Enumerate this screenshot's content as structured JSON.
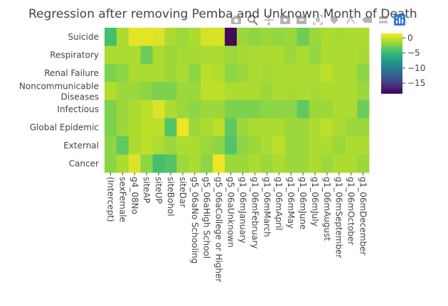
{
  "chart_data": {
    "type": "heatmap",
    "title": "Regression after removing Pemba and Unknown Month of Death",
    "x": [
      "(Intercept)",
      "sexFemale",
      "g4_08No",
      "siteAP",
      "siteUP",
      "siteBohol",
      "siteDar",
      "g5_06aNo Schooling",
      "g5_06aHigh School",
      "g5_06aCollege or Higher",
      "g5_06aUnknown",
      "g1_06mJanuary",
      "g1_06mFebruary",
      "g1_06mMarch",
      "g1_06mApril",
      "g1_06mMay",
      "g1_06mJune",
      "g1_06mJuly",
      "g1_06mAugust",
      "g1_06mSeptember",
      "g1_06mOctober",
      "g1_06mDecember"
    ],
    "y": [
      "Suicide",
      "Respiratory",
      "Renal Failure",
      "Noncommunicable Diseases",
      "Infectious",
      "Global Epidemic",
      "External",
      "Cancer"
    ],
    "y_tick_lines": [
      [
        "Suicide"
      ],
      [
        "Respiratory"
      ],
      [
        "Renal Failure"
      ],
      [
        "Noncommunicable",
        "Diseases"
      ],
      [
        "Infectious"
      ],
      [
        "Global Epidemic"
      ],
      [
        "External"
      ],
      [
        "Cancer"
      ]
    ],
    "z": [
      [
        -4.5,
        -1.0,
        0.7,
        0.8,
        0.5,
        -1.0,
        -1.5,
        -1.0,
        0.3,
        0.4,
        -18.0,
        -1.5,
        -2.0,
        -1.5,
        -1.8,
        -1.5,
        -3.0,
        -1.5,
        -1.0,
        -1.2,
        -1.0,
        -1.0
      ],
      [
        -1.0,
        -1.0,
        -1.0,
        -3.0,
        -1.0,
        -1.5,
        -1.2,
        -1.2,
        -1.0,
        -1.0,
        -1.5,
        -1.2,
        -1.0,
        -1.0,
        -1.0,
        -1.5,
        -1.0,
        -1.8,
        -1.0,
        -1.0,
        -1.0,
        -1.2
      ],
      [
        -2.5,
        -2.0,
        -1.0,
        -1.0,
        -1.0,
        -1.5,
        -1.0,
        -2.0,
        -0.5,
        -0.8,
        -2.0,
        -1.5,
        -1.0,
        -1.2,
        -1.0,
        -1.0,
        -1.0,
        -1.0,
        -0.5,
        -1.0,
        -1.0,
        -2.0
      ],
      [
        -0.8,
        -1.5,
        -1.5,
        -2.0,
        -2.5,
        -2.5,
        -1.5,
        -1.5,
        -0.5,
        -0.5,
        -1.0,
        -1.0,
        -1.0,
        -1.5,
        -1.0,
        -1.2,
        -1.0,
        -1.2,
        -1.0,
        -1.0,
        -1.0,
        -1.5
      ],
      [
        -2.5,
        -1.5,
        -1.0,
        -0.5,
        0.5,
        -1.0,
        -1.5,
        -2.0,
        -1.5,
        -1.5,
        -2.5,
        -2.5,
        -2.5,
        -2.0,
        -2.0,
        -2.0,
        -3.5,
        -1.5,
        -1.5,
        -1.0,
        -1.0,
        -3.0
      ],
      [
        -2.5,
        -1.5,
        -1.0,
        -0.5,
        -0.5,
        -4.0,
        1.0,
        -1.5,
        -1.0,
        -0.5,
        -3.5,
        -1.5,
        -1.0,
        -1.0,
        -1.0,
        -1.5,
        -1.5,
        -1.0,
        -0.5,
        -1.0,
        -1.5,
        -1.5
      ],
      [
        -2.0,
        -3.5,
        -1.0,
        -0.5,
        -1.0,
        -1.5,
        -1.0,
        -1.0,
        -1.5,
        -2.0,
        -4.0,
        -2.0,
        -1.5,
        -1.0,
        -0.5,
        -1.5,
        -1.5,
        -1.0,
        -1.0,
        -1.5,
        -1.0,
        -1.0
      ],
      [
        -2.0,
        -1.0,
        0.5,
        -2.0,
        -4.5,
        -4.0,
        -1.5,
        -1.0,
        -2.0,
        1.0,
        -1.5,
        -1.5,
        -1.0,
        -1.5,
        -1.0,
        -1.5,
        -1.5,
        -1.0,
        -1.5,
        -1.0,
        -1.0,
        -1.5
      ]
    ],
    "colorscale": "Viridis",
    "zlim": [
      -18.5,
      1.5
    ],
    "colorbar": {
      "tickvals": [
        0,
        -5,
        -10,
        -15
      ],
      "ticktext": [
        "0",
        "−5",
        "−10",
        "−15"
      ]
    }
  },
  "modebar": {
    "buttons": [
      "camera-icon",
      "zoom-icon",
      "pan-icon",
      "zoom-in-icon",
      "zoom-out-icon",
      "autoscale-icon",
      "reset-axes-icon",
      "spike-icon",
      "hover-closest-icon",
      "hover-compare-icon",
      "plotly-logo-icon"
    ]
  }
}
